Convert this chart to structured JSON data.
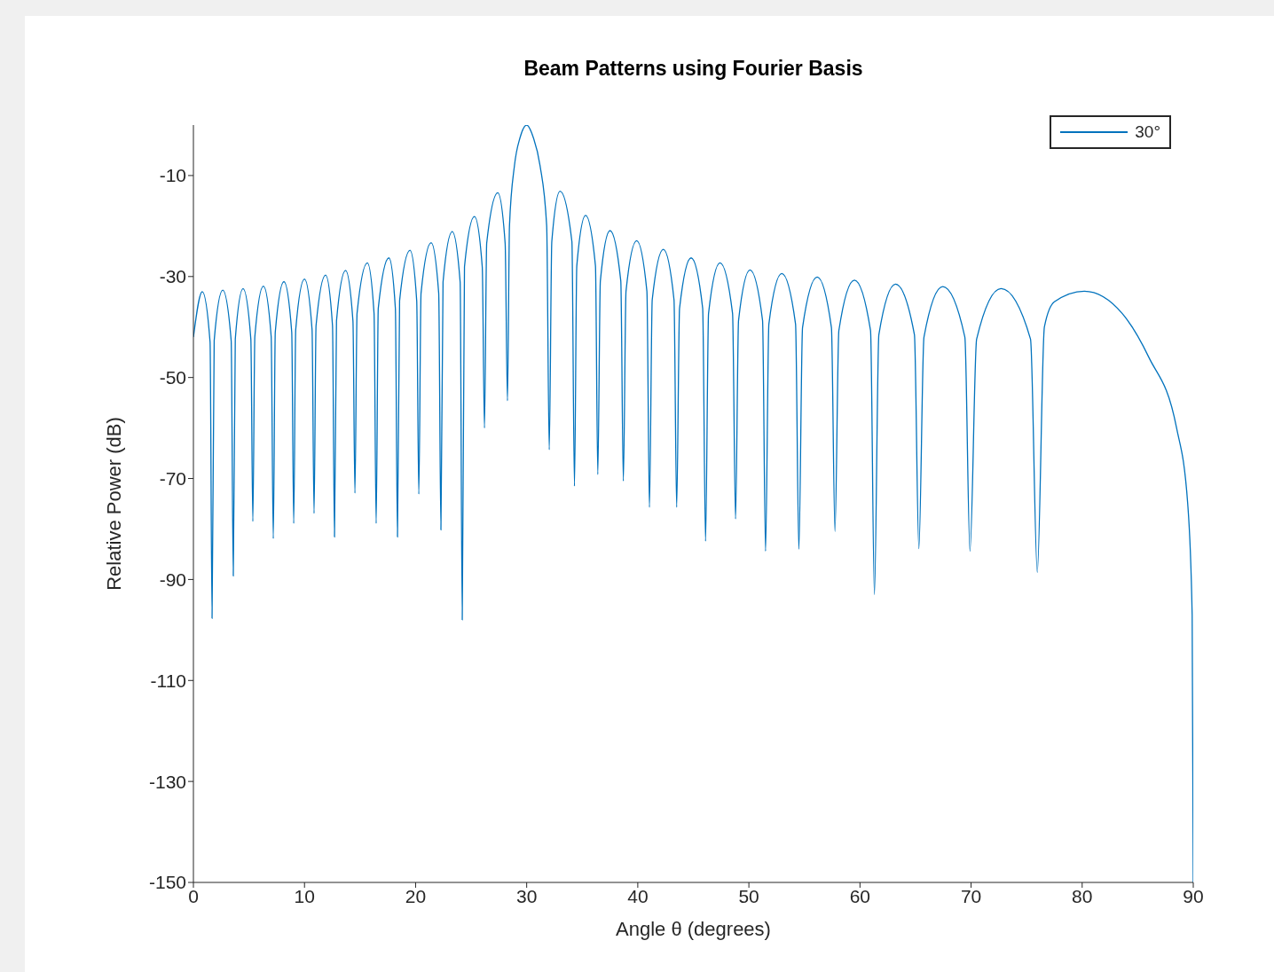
{
  "chart_data": {
    "type": "line",
    "title": "Beam Patterns using Fourier Basis",
    "xlabel": "Angle θ (degrees)",
    "ylabel": "Relative Power (dB)",
    "xlim": [
      0,
      90
    ],
    "xticks": [
      0,
      10,
      20,
      30,
      40,
      50,
      60,
      70,
      80,
      90
    ],
    "ylim": [
      -150,
      0
    ],
    "yticks": [
      -150,
      -130,
      -110,
      -90,
      -70,
      -50,
      -30,
      -10
    ],
    "legend": "top right",
    "series": [
      {
        "name": "30°",
        "color": "#0072bd",
        "x": [
          0,
          0.8,
          1.5,
          1.68,
          1.87,
          2.64,
          3.4,
          3.59,
          3.77,
          4.47,
          5.17,
          5.35,
          5.53,
          6.3,
          7.0,
          7.19,
          7.37,
          8.15,
          8.85,
          9.03,
          9.21,
          10.0,
          10.68,
          10.86,
          11.04,
          11.9,
          12.52,
          12.7,
          12.88,
          13.7,
          14.36,
          14.54,
          14.73,
          15.66,
          16.26,
          16.45,
          16.64,
          17.6,
          18.18,
          18.37,
          18.56,
          19.5,
          20.1,
          20.29,
          20.49,
          21.4,
          22.08,
          22.28,
          22.47,
          23.3,
          24.01,
          24.2,
          24.4,
          25.3,
          26.0,
          26.2,
          26.4,
          27.4,
          28.06,
          28.27,
          28.45,
          28.9,
          29.4,
          30,
          30.6,
          31.2,
          31.8,
          32.03,
          32.26,
          33.0,
          34.07,
          34.3,
          34.51,
          35.3,
          36.19,
          36.4,
          36.63,
          37.5,
          38.47,
          38.7,
          38.94,
          39.9,
          40.82,
          41.05,
          41.3,
          42.3,
          43.26,
          43.5,
          43.76,
          44.8,
          45.84,
          46.1,
          46.37,
          47.4,
          48.53,
          48.8,
          49.07,
          50.1,
          51.23,
          51.5,
          51.8,
          52.96,
          54.2,
          54.5,
          54.83,
          56.15,
          57.43,
          57.75,
          58.1,
          59.5,
          60.95,
          61.3,
          61.7,
          63.2,
          64.9,
          65.3,
          65.76,
          67.45,
          69.44,
          69.9,
          70.5,
          72.7,
          75.35,
          75.96,
          76.6,
          77.5,
          80.2,
          83.6,
          86,
          88.5,
          89.5,
          89.9,
          90
        ],
        "values": [
          -42,
          -33,
          -43,
          -97.7,
          -42.7,
          -32.7,
          -42.7,
          -89.3,
          -42.4,
          -32.4,
          -42.4,
          -78.5,
          -41.9,
          -31.9,
          -41.9,
          -81.9,
          -41,
          -31,
          -41,
          -78.9,
          -40.5,
          -30.5,
          -40.5,
          -76.9,
          -39.7,
          -29.7,
          -39.7,
          -81.6,
          -38.8,
          -28.8,
          -38.8,
          -72.9,
          -37.3,
          -27.3,
          -37.3,
          -78.9,
          -36.3,
          -26.3,
          -36.3,
          -81.6,
          -34.8,
          -24.8,
          -34.8,
          -73.1,
          -33.3,
          -23.3,
          -33.3,
          -80.2,
          -31.1,
          -21.1,
          -31.1,
          -98,
          -28.1,
          -18.1,
          -28.1,
          -60,
          -23.4,
          -13.4,
          -23.4,
          -54.6,
          -20,
          -8,
          -2.5,
          0,
          -2.5,
          -8,
          -20,
          -64.3,
          -23.1,
          -13.1,
          -23.1,
          -71.5,
          -27.9,
          -17.9,
          -27.9,
          -69.2,
          -30.9,
          -20.9,
          -30.9,
          -70.5,
          -32.9,
          -22.9,
          -32.9,
          -75.7,
          -34.6,
          -24.6,
          -34.6,
          -75.7,
          -36.3,
          -26.3,
          -36.3,
          -82.4,
          -37.3,
          -27.3,
          -37.3,
          -78,
          -38.7,
          -28.7,
          -38.7,
          -84.4,
          -39.4,
          -29.4,
          -39.4,
          -84,
          -40.1,
          -30.1,
          -40.1,
          -80.5,
          -40.7,
          -30.7,
          -40.7,
          -93,
          -41.5,
          -31.5,
          -41.5,
          -83.9,
          -42,
          -32,
          -42,
          -84.4,
          -42.4,
          -32.4,
          -42.4,
          -88.6,
          -40,
          -35,
          -32.9,
          -37.3,
          -46,
          -60,
          -75,
          -97,
          -150
        ]
      }
    ]
  }
}
